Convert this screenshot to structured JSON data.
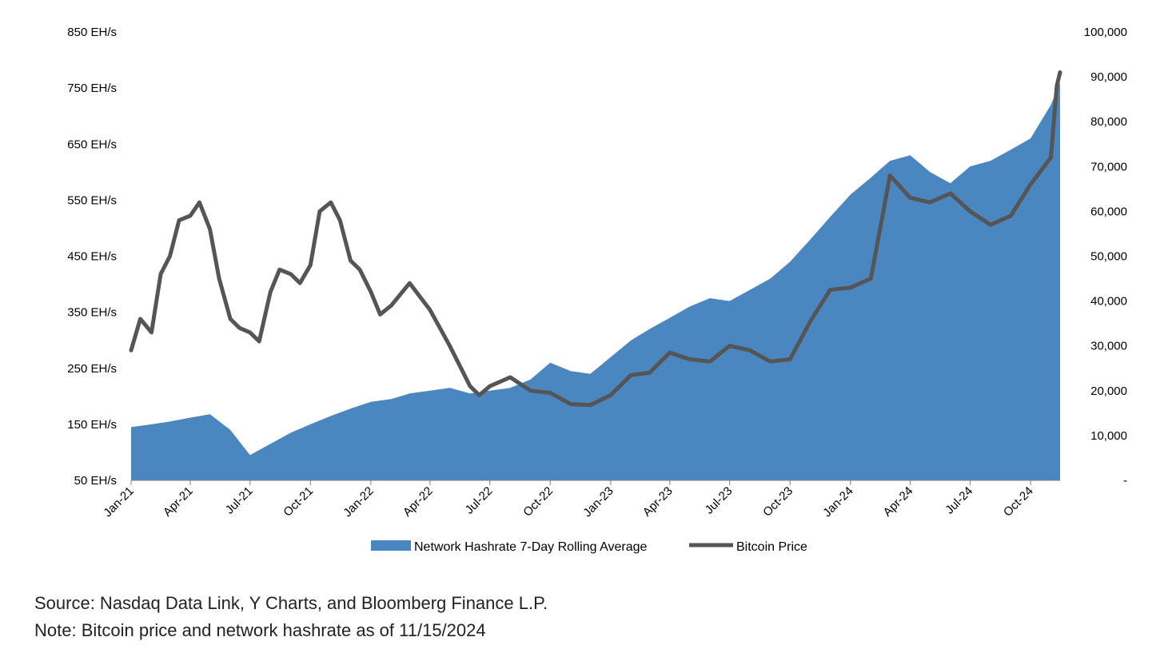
{
  "chart_data": {
    "type": "area+line",
    "title": "",
    "xlabel": "",
    "left_axis": {
      "ticks": [
        "50 EH/s",
        "150 EH/s",
        "250 EH/s",
        "350 EH/s",
        "450 EH/s",
        "550 EH/s",
        "650 EH/s",
        "750 EH/s",
        "850 EH/s"
      ],
      "range": [
        50,
        850
      ],
      "unit": "EH/s"
    },
    "right_axis": {
      "ticks": [
        "-",
        "10,000",
        "20,000",
        "30,000",
        "40,000",
        "50,000",
        "60,000",
        "70,000",
        "80,000",
        "90,000",
        "100,000"
      ],
      "range": [
        0,
        100000
      ]
    },
    "x_ticks": [
      "Jan-21",
      "Apr-21",
      "Jul-21",
      "Oct-21",
      "Jan-22",
      "Apr-22",
      "Jul-22",
      "Oct-22",
      "Jan-23",
      "Apr-23",
      "Jul-23",
      "Oct-23",
      "Jan-24",
      "Apr-24",
      "Jul-24",
      "Oct-24"
    ],
    "x_range": [
      "2021-01",
      "2024-11-15"
    ],
    "grid": false,
    "legend_position": "bottom-center",
    "series": [
      {
        "name": "Network Hashrate 7-Day Rolling Average",
        "type": "area",
        "axis": "left",
        "color": "#4a86bf",
        "x": [
          "2021-01",
          "2021-02",
          "2021-03",
          "2021-04",
          "2021-05",
          "2021-06",
          "2021-07",
          "2021-08",
          "2021-09",
          "2021-10",
          "2021-11",
          "2021-12",
          "2022-01",
          "2022-02",
          "2022-03",
          "2022-04",
          "2022-05",
          "2022-06",
          "2022-07",
          "2022-08",
          "2022-09",
          "2022-10",
          "2022-11",
          "2022-12",
          "2023-01",
          "2023-02",
          "2023-03",
          "2023-04",
          "2023-05",
          "2023-06",
          "2023-07",
          "2023-08",
          "2023-09",
          "2023-10",
          "2023-11",
          "2023-12",
          "2024-01",
          "2024-02",
          "2024-03",
          "2024-04",
          "2024-05",
          "2024-06",
          "2024-07",
          "2024-08",
          "2024-09",
          "2024-10",
          "2024-11",
          "2024-11-15"
        ],
        "values": [
          145,
          150,
          155,
          162,
          168,
          140,
          95,
          115,
          135,
          150,
          165,
          178,
          190,
          195,
          205,
          210,
          215,
          205,
          210,
          215,
          230,
          260,
          245,
          240,
          270,
          300,
          320,
          340,
          360,
          375,
          370,
          390,
          410,
          440,
          480,
          520,
          560,
          590,
          620,
          630,
          600,
          580,
          610,
          620,
          640,
          660,
          720,
          760
        ]
      },
      {
        "name": "Bitcoin Price",
        "type": "line",
        "axis": "right",
        "color": "#555555",
        "x": [
          "2021-01",
          "2021-01-15",
          "2021-02",
          "2021-02-15",
          "2021-03",
          "2021-03-15",
          "2021-04",
          "2021-04-15",
          "2021-05",
          "2021-05-15",
          "2021-06",
          "2021-06-15",
          "2021-07",
          "2021-07-15",
          "2021-08",
          "2021-08-15",
          "2021-09",
          "2021-09-15",
          "2021-10",
          "2021-10-15",
          "2021-11",
          "2021-11-15",
          "2021-12",
          "2021-12-15",
          "2022-01",
          "2022-01-15",
          "2022-02",
          "2022-03",
          "2022-04",
          "2022-05",
          "2022-06",
          "2022-06-15",
          "2022-07",
          "2022-08",
          "2022-09",
          "2022-10",
          "2022-11",
          "2022-12",
          "2023-01",
          "2023-02",
          "2023-03",
          "2023-04",
          "2023-05",
          "2023-06",
          "2023-07",
          "2023-08",
          "2023-09",
          "2023-10",
          "2023-11",
          "2023-12",
          "2024-01",
          "2024-02",
          "2024-03",
          "2024-04",
          "2024-05",
          "2024-06",
          "2024-07",
          "2024-08",
          "2024-09",
          "2024-10",
          "2024-11",
          "2024-11-10",
          "2024-11-15"
        ],
        "values": [
          29000,
          36000,
          33000,
          46000,
          50000,
          58000,
          59000,
          62000,
          56000,
          45000,
          36000,
          34000,
          33000,
          31000,
          42000,
          47000,
          46000,
          44000,
          48000,
          60000,
          62000,
          58000,
          49000,
          47000,
          42000,
          37000,
          39000,
          44000,
          38000,
          30000,
          21000,
          19000,
          21000,
          23000,
          20000,
          19500,
          17000,
          16800,
          19000,
          23500,
          24000,
          28500,
          27000,
          26500,
          30000,
          29000,
          26500,
          27000,
          35500,
          42500,
          43000,
          45000,
          68000,
          63000,
          62000,
          64000,
          60000,
          57000,
          59000,
          66000,
          72000,
          88000,
          91000
        ]
      }
    ]
  },
  "legend": {
    "area_label": "Network Hashrate 7-Day Rolling Average",
    "line_label": "Bitcoin Price"
  },
  "footnotes": {
    "source": "Source: Nasdaq Data Link, Y Charts, and Bloomberg Finance L.P.",
    "note": "Note: Bitcoin price and network hashrate as of 11/15/2024"
  }
}
